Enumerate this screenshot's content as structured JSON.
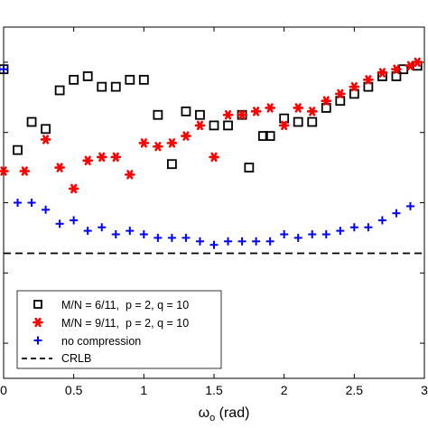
{
  "chart_data": {
    "type": "scatter",
    "xlabel_base": "ω",
    "xlabel_sub": "o",
    "xlabel_unit": " (rad)",
    "xlim": [
      0,
      3
    ],
    "ylim": [
      0,
      1
    ],
    "x_ticks": [
      0,
      0.5,
      1,
      1.5,
      2,
      2.5,
      3
    ],
    "x_tick_labels": [
      "0",
      "0.5",
      "1",
      "1.5",
      "2",
      "2.5",
      "3"
    ],
    "y_ticks": [
      0.1,
      0.3,
      0.5,
      0.7,
      0.9
    ],
    "legend_position": "bottom-left",
    "series": [
      {
        "name": "M/N = 6/11,  p = 2, q = 10",
        "marker": "square",
        "color": "#000000",
        "points": [
          [
            0.0,
            0.88
          ],
          [
            0.1,
            0.65
          ],
          [
            0.2,
            0.73
          ],
          [
            0.3,
            0.71
          ],
          [
            0.4,
            0.82
          ],
          [
            0.5,
            0.85
          ],
          [
            0.6,
            0.86
          ],
          [
            0.7,
            0.83
          ],
          [
            0.8,
            0.83
          ],
          [
            0.9,
            0.85
          ],
          [
            1.0,
            0.85
          ],
          [
            1.1,
            0.75
          ],
          [
            1.2,
            0.61
          ],
          [
            1.3,
            0.76
          ],
          [
            1.4,
            0.75
          ],
          [
            1.5,
            0.72
          ],
          [
            1.6,
            0.72
          ],
          [
            1.7,
            0.75
          ],
          [
            1.75,
            0.6
          ],
          [
            1.85,
            0.69
          ],
          [
            1.9,
            0.69
          ],
          [
            2.0,
            0.74
          ],
          [
            2.1,
            0.73
          ],
          [
            2.2,
            0.73
          ],
          [
            2.3,
            0.77
          ],
          [
            2.4,
            0.79
          ],
          [
            2.5,
            0.81
          ],
          [
            2.6,
            0.83
          ],
          [
            2.7,
            0.86
          ],
          [
            2.8,
            0.86
          ],
          [
            2.85,
            0.88
          ],
          [
            2.95,
            0.89
          ]
        ]
      },
      {
        "name": "M/N = 9/11,  p = 2, q = 10",
        "marker": "asterisk",
        "color": "#ff0000",
        "points": [
          [
            0.0,
            0.59
          ],
          [
            0.15,
            0.59
          ],
          [
            0.3,
            0.68
          ],
          [
            0.4,
            0.6
          ],
          [
            0.5,
            0.54
          ],
          [
            0.6,
            0.62
          ],
          [
            0.7,
            0.63
          ],
          [
            0.8,
            0.63
          ],
          [
            0.9,
            0.58
          ],
          [
            1.0,
            0.67
          ],
          [
            1.1,
            0.66
          ],
          [
            1.2,
            0.67
          ],
          [
            1.3,
            0.69
          ],
          [
            1.4,
            0.72
          ],
          [
            1.5,
            0.63
          ],
          [
            1.6,
            0.75
          ],
          [
            1.7,
            0.75
          ],
          [
            1.8,
            0.76
          ],
          [
            1.9,
            0.77
          ],
          [
            2.0,
            0.72
          ],
          [
            2.1,
            0.77
          ],
          [
            2.2,
            0.76
          ],
          [
            2.3,
            0.79
          ],
          [
            2.4,
            0.81
          ],
          [
            2.5,
            0.83
          ],
          [
            2.6,
            0.85
          ],
          [
            2.7,
            0.87
          ],
          [
            2.8,
            0.88
          ],
          [
            2.9,
            0.89
          ],
          [
            2.95,
            0.9
          ]
        ]
      },
      {
        "name": "no compression",
        "marker": "plus",
        "color": "#0000ff",
        "points": [
          [
            0.0,
            0.88
          ],
          [
            0.1,
            0.5
          ],
          [
            0.2,
            0.5
          ],
          [
            0.3,
            0.48
          ],
          [
            0.4,
            0.44
          ],
          [
            0.5,
            0.45
          ],
          [
            0.6,
            0.42
          ],
          [
            0.7,
            0.43
          ],
          [
            0.8,
            0.41
          ],
          [
            0.9,
            0.42
          ],
          [
            1.0,
            0.41
          ],
          [
            1.1,
            0.4
          ],
          [
            1.2,
            0.4
          ],
          [
            1.3,
            0.4
          ],
          [
            1.4,
            0.39
          ],
          [
            1.5,
            0.38
          ],
          [
            1.6,
            0.39
          ],
          [
            1.7,
            0.39
          ],
          [
            1.8,
            0.39
          ],
          [
            1.9,
            0.39
          ],
          [
            2.0,
            0.41
          ],
          [
            2.1,
            0.4
          ],
          [
            2.2,
            0.41
          ],
          [
            2.3,
            0.41
          ],
          [
            2.4,
            0.42
          ],
          [
            2.5,
            0.43
          ],
          [
            2.6,
            0.43
          ],
          [
            2.7,
            0.45
          ],
          [
            2.8,
            0.47
          ],
          [
            2.9,
            0.49
          ]
        ]
      },
      {
        "name": "CRLB",
        "marker": "dashed-line",
        "color": "#000000",
        "y": 0.356
      }
    ]
  }
}
